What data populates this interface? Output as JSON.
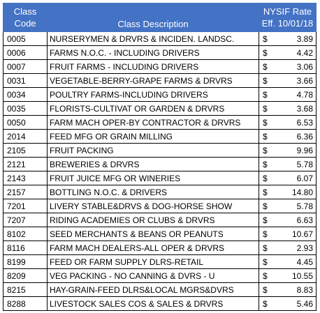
{
  "header": {
    "code_line1": "Class",
    "code_line2": "Code",
    "description": "Class Description",
    "rate_line1": "NYSIF Rate",
    "rate_line2": "Eff. 10/01/18"
  },
  "currency_symbol": "$",
  "rows": [
    {
      "code": "0005",
      "description": "NURSERYMEN & DRVRS & INCIDEN. LANDSC.",
      "rate": "3.89"
    },
    {
      "code": "0006",
      "description": "FARMS N.O.C. - INCLUDING DRIVERS",
      "rate": "4.42"
    },
    {
      "code": "0007",
      "description": "FRUIT FARMS - INCLUDING DRIVERS",
      "rate": "3.06"
    },
    {
      "code": "0031",
      "description": "VEGETABLE-BERRY-GRAPE FARMS & DRVRS",
      "rate": "3.66"
    },
    {
      "code": "0034",
      "description": "POULTRY FARMS-INCLUDING DRIVERS",
      "rate": "4.78"
    },
    {
      "code": "0035",
      "description": "FLORISTS-CULTIVAT OR GARDEN & DRVRS",
      "rate": "3.68"
    },
    {
      "code": "0050",
      "description": "FARM MACH OPER-BY CONTRACTOR & DRVRS",
      "rate": "6.53"
    },
    {
      "code": "2014",
      "description": "FEED MFG OR GRAIN MILLING",
      "rate": "6.36"
    },
    {
      "code": "2105",
      "description": "FRUIT PACKING",
      "rate": "9.96"
    },
    {
      "code": "2121",
      "description": "BREWERIES & DRVRS",
      "rate": "5.78"
    },
    {
      "code": "2143",
      "description": "FRUIT JUICE MFG OR WINERIES",
      "rate": "6.07"
    },
    {
      "code": "2157",
      "description": "BOTTLING N.O.C. & DRIVERS",
      "rate": "14.80"
    },
    {
      "code": "7201",
      "description": "LIVERY STABLE&DRVS & DOG-HORSE SHOW",
      "rate": "5.78"
    },
    {
      "code": "7207",
      "description": "RIDING ACADEMIES OR CLUBS & DRVRS",
      "rate": "6.63"
    },
    {
      "code": "8102",
      "description": "SEED MERCHANTS & BEANS OR PEANUTS",
      "rate": "10.67"
    },
    {
      "code": "8116",
      "description": "FARM MACH DEALERS-ALL OPER & DRVRS",
      "rate": "2.93"
    },
    {
      "code": "8199",
      "description": "FEED OR FARM SUPPLY DLRS-RETAIL",
      "rate": "4.45"
    },
    {
      "code": "8209",
      "description": "VEG PACKING - NO CANNING & DVRS - U",
      "rate": "10.55"
    },
    {
      "code": "8215",
      "description": "HAY-GRAIN-FEED DLRS&LOCAL MGRS&DVRS",
      "rate": "8.83"
    },
    {
      "code": "8288",
      "description": "LIVESTOCK SALES COS & SALES & DRVRS",
      "rate": "5.46"
    }
  ]
}
